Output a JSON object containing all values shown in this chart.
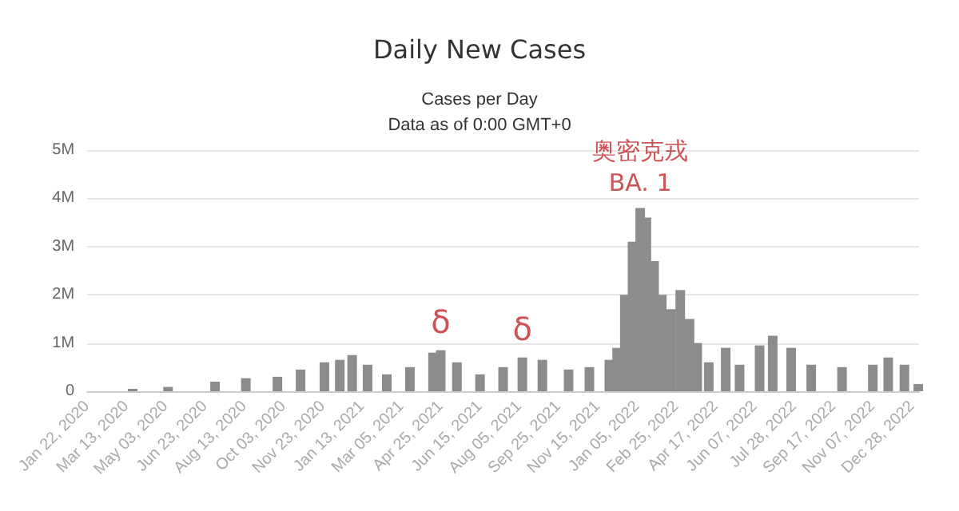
{
  "chart_data": {
    "type": "bar",
    "title": "Daily New Cases",
    "subtitle": "Cases per Day\nData as of 0:00 GMT+0",
    "x": [
      "2020-03-21",
      "2020-05-06",
      "2020-07-06",
      "2020-08-15",
      "2020-09-25",
      "2020-10-25",
      "2020-11-25",
      "2020-12-15",
      "2020-12-31",
      "2021-01-20",
      "2021-02-14",
      "2021-03-16",
      "2021-04-15",
      "2021-04-25",
      "2021-05-16",
      "2021-06-15",
      "2021-07-15",
      "2021-08-09",
      "2021-09-04",
      "2021-10-08",
      "2021-11-04",
      "2021-11-30",
      "2021-12-10",
      "2021-12-20",
      "2021-12-30",
      "2022-01-09",
      "2022-01-17",
      "2022-01-27",
      "2022-02-06",
      "2022-02-18",
      "2022-03-02",
      "2022-03-14",
      "2022-03-24",
      "2022-04-08",
      "2022-04-30",
      "2022-05-18",
      "2022-06-13",
      "2022-06-30",
      "2022-07-24",
      "2022-08-19",
      "2022-09-28",
      "2022-11-07",
      "2022-11-27",
      "2022-12-18",
      "2023-01-05"
    ],
    "values": [
      50000,
      90000,
      200000,
      270000,
      300000,
      450000,
      600000,
      650000,
      750000,
      550000,
      350000,
      500000,
      800000,
      850000,
      600000,
      350000,
      500000,
      700000,
      650000,
      450000,
      500000,
      650000,
      900000,
      2000000,
      3100000,
      3800000,
      3600000,
      2700000,
      2000000,
      1700000,
      2100000,
      1500000,
      1000000,
      600000,
      900000,
      550000,
      950000,
      1150000,
      900000,
      550000,
      500000,
      550000,
      700000,
      550000,
      150000
    ],
    "color": "#8c8c8c",
    "xlim": [
      "2020-01-22",
      "2023-01-06"
    ],
    "xticks": [
      {
        "value": "2020-01-22",
        "label": "Jan 22, 2020"
      },
      {
        "value": "2020-03-13",
        "label": "Mar 13, 2020"
      },
      {
        "value": "2020-05-03",
        "label": "May 03, 2020"
      },
      {
        "value": "2020-06-23",
        "label": "Jun 23, 2020"
      },
      {
        "value": "2020-08-13",
        "label": "Aug 13, 2020"
      },
      {
        "value": "2020-10-03",
        "label": "Oct 03, 2020"
      },
      {
        "value": "2020-11-23",
        "label": "Nov 23, 2020"
      },
      {
        "value": "2021-01-13",
        "label": "Jan 13, 2021"
      },
      {
        "value": "2021-03-05",
        "label": "Mar 05, 2021"
      },
      {
        "value": "2021-04-25",
        "label": "Apr 25, 2021"
      },
      {
        "value": "2021-06-15",
        "label": "Jun 15, 2021"
      },
      {
        "value": "2021-08-05",
        "label": "Aug 05, 2021"
      },
      {
        "value": "2021-09-25",
        "label": "Sep 25, 2021"
      },
      {
        "value": "2021-11-15",
        "label": "Nov 15, 2021"
      },
      {
        "value": "2022-01-05",
        "label": "Jan 05, 2022"
      },
      {
        "value": "2022-02-25",
        "label": "Feb 25, 2022"
      },
      {
        "value": "2022-04-17",
        "label": "Apr 17, 2022"
      },
      {
        "value": "2022-06-07",
        "label": "Jun 07, 2022"
      },
      {
        "value": "2022-07-28",
        "label": "Jul 28, 2022"
      },
      {
        "value": "2022-09-17",
        "label": "Sep 17, 2022"
      },
      {
        "value": "2022-11-07",
        "label": "Nov 07, 2022"
      },
      {
        "value": "2022-12-28",
        "label": "Dec 28, 2022"
      }
    ],
    "ylim": [
      0,
      5000000
    ],
    "yticks": [
      0,
      {
        "value": 1000000,
        "label": "1M"
      },
      {
        "value": 2000000,
        "label": "2M"
      },
      {
        "value": 3000000,
        "label": "3M"
      },
      {
        "value": 4000000,
        "label": "4M"
      },
      {
        "value": 5000000,
        "label": "5M"
      }
    ],
    "grid": "y",
    "annotations": [
      {
        "text": "δ",
        "x": "2021-04-25",
        "y": 850000
      },
      {
        "text": "δ",
        "x": "2021-08-09",
        "y": 700000
      },
      {
        "text": "奥密克戎",
        "x": "2022-01-09",
        "y": 3800000
      },
      {
        "text": "BA. 1",
        "x": "2022-01-09",
        "y": 3800000
      }
    ]
  }
}
